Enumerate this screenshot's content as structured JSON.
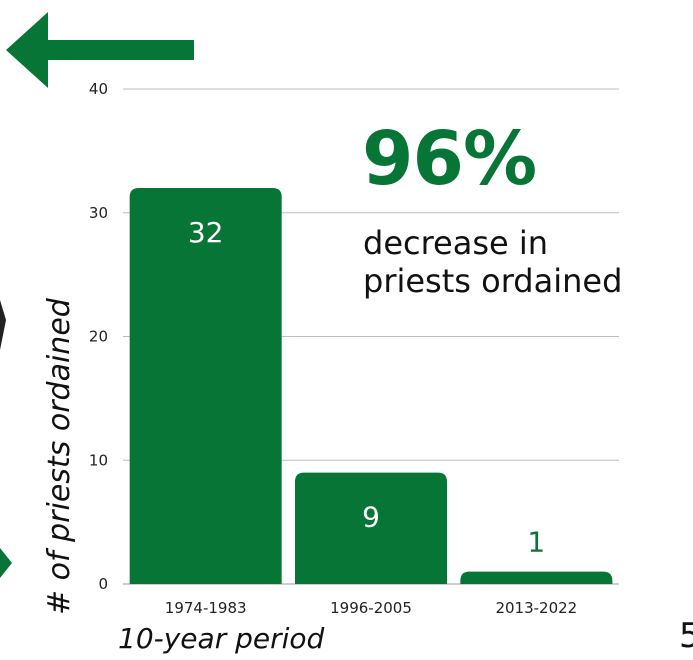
{
  "chart_data": {
    "type": "bar",
    "categories": [
      "1974-1983",
      "1996-2005",
      "2013-2022"
    ],
    "values": [
      32,
      9,
      1
    ],
    "data_labels": [
      "32",
      "9",
      "1"
    ],
    "xlabel": "10-year period",
    "ylabel": "# of priests ordained",
    "ylim": [
      0,
      40
    ],
    "yticks": [
      0,
      10,
      20,
      30,
      40
    ],
    "grid": true,
    "bar_color": "#077536"
  },
  "callout": {
    "stat": "96%",
    "text_line1": "decrease in",
    "text_line2": "priests ordained"
  },
  "corner_number": "5",
  "colors": {
    "accent": "#077536",
    "grid": "#bdbdbd",
    "text": "#111111"
  },
  "icons": {
    "back": "left-arrow-icon",
    "side": "right-chevron-icon"
  }
}
